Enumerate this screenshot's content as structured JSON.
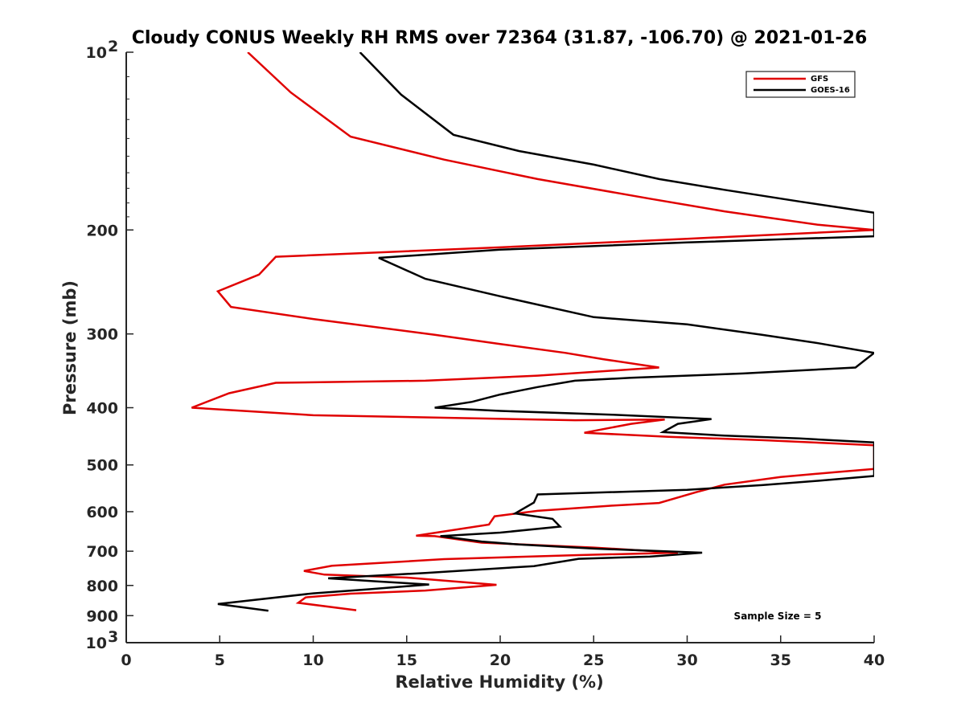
{
  "chart_data": {
    "type": "line",
    "title": "Cloudy CONUS Weekly RH RMS over 72364 (31.87, -106.70) @ 2021-01-26",
    "xlabel": "Relative Humidity (%)",
    "ylabel": "Pressure (mb)",
    "xlim": [
      0,
      40
    ],
    "ylim": [
      100,
      1000
    ],
    "y_scale": "log",
    "y_reversed": true,
    "grid": false,
    "legend_position": "top-right",
    "x_ticks": [
      "0",
      "5",
      "10",
      "15",
      "20",
      "25",
      "30",
      "35",
      "40"
    ],
    "y_ticks": [
      {
        "value": 100,
        "label": "10",
        "exponent": "2"
      },
      {
        "value": 200,
        "label": "200",
        "exponent": ""
      },
      {
        "value": 300,
        "label": "300",
        "exponent": ""
      },
      {
        "value": 400,
        "label": "400",
        "exponent": ""
      },
      {
        "value": 500,
        "label": "500",
        "exponent": ""
      },
      {
        "value": 600,
        "label": "600",
        "exponent": ""
      },
      {
        "value": 700,
        "label": "700",
        "exponent": ""
      },
      {
        "value": 800,
        "label": "800",
        "exponent": ""
      },
      {
        "value": 900,
        "label": "900",
        "exponent": ""
      },
      {
        "value": 1000,
        "label": "10",
        "exponent": "3"
      }
    ],
    "annotation": "Sample Size = 5",
    "series": [
      {
        "name": "GFS",
        "color": "#e00000",
        "points": [
          [
            6.5,
            100
          ],
          [
            8.8,
            117
          ],
          [
            12.0,
            139
          ],
          [
            17.0,
            152
          ],
          [
            22.0,
            164
          ],
          [
            28.0,
            177
          ],
          [
            32.0,
            186
          ],
          [
            37.0,
            196
          ],
          [
            40.0,
            200
          ],
          [
            30.0,
            207
          ],
          [
            20.0,
            214
          ],
          [
            8.0,
            222
          ],
          [
            7.1,
            238
          ],
          [
            4.9,
            254
          ],
          [
            5.6,
            270
          ],
          [
            10.0,
            283
          ],
          [
            16.5,
            301
          ],
          [
            20.0,
            312
          ],
          [
            23.5,
            323
          ],
          [
            25.5,
            331
          ],
          [
            28.5,
            342
          ],
          [
            22.0,
            353
          ],
          [
            16.0,
            360
          ],
          [
            8.0,
            363
          ],
          [
            5.5,
            378
          ],
          [
            3.5,
            400
          ],
          [
            10.0,
            412
          ],
          [
            17.0,
            416
          ],
          [
            24.0,
            420
          ],
          [
            28.8,
            419
          ],
          [
            27.0,
            426
          ],
          [
            24.5,
            441
          ],
          [
            29.0,
            448
          ],
          [
            34.0,
            454
          ],
          [
            40.0,
            463
          ],
          [
            40.0,
            508
          ],
          [
            38.0,
            514
          ],
          [
            35.0,
            524
          ],
          [
            32.0,
            540
          ],
          [
            30.5,
            556
          ],
          [
            28.5,
            580
          ],
          [
            26.0,
            586
          ],
          [
            22.0,
            598
          ],
          [
            19.7,
            611
          ],
          [
            19.4,
            631
          ],
          [
            15.5,
            659
          ],
          [
            16.5,
            660
          ],
          [
            19.0,
            677
          ],
          [
            25.0,
            690
          ],
          [
            29.5,
            704
          ],
          [
            24.0,
            711
          ],
          [
            17.0,
            722
          ],
          [
            11.0,
            741
          ],
          [
            9.5,
            756
          ],
          [
            10.6,
            767
          ],
          [
            15.0,
            776
          ],
          [
            17.0,
            785
          ],
          [
            19.8,
            798
          ],
          [
            16.0,
            816
          ],
          [
            12.0,
            826
          ],
          [
            9.6,
            838
          ],
          [
            9.2,
            856
          ],
          [
            12.3,
            881
          ]
        ]
      },
      {
        "name": "GOES-16",
        "color": "#000000",
        "points": [
          [
            12.5,
            100
          ],
          [
            14.7,
            118
          ],
          [
            17.5,
            138
          ],
          [
            21.0,
            147
          ],
          [
            25.0,
            155
          ],
          [
            28.5,
            164
          ],
          [
            32.0,
            171
          ],
          [
            36.0,
            179
          ],
          [
            40.0,
            187
          ],
          [
            40.0,
            205
          ],
          [
            30.0,
            210
          ],
          [
            20.0,
            216
          ],
          [
            13.5,
            223
          ],
          [
            16.0,
            242
          ],
          [
            20.0,
            259
          ],
          [
            25.0,
            281
          ],
          [
            30.0,
            289
          ],
          [
            34.0,
            301
          ],
          [
            37.0,
            311
          ],
          [
            40.0,
            323
          ],
          [
            39.0,
            342
          ],
          [
            33.0,
            350
          ],
          [
            27.0,
            356
          ],
          [
            24.0,
            360
          ],
          [
            22.0,
            369
          ],
          [
            20.0,
            380
          ],
          [
            18.5,
            391
          ],
          [
            16.5,
            400
          ],
          [
            20.0,
            405
          ],
          [
            26.0,
            411
          ],
          [
            31.3,
            418
          ],
          [
            29.5,
            426
          ],
          [
            28.7,
            440
          ],
          [
            32.0,
            446
          ],
          [
            36.0,
            451
          ],
          [
            40.0,
            458
          ],
          [
            40.0,
            522
          ],
          [
            37.0,
            532
          ],
          [
            34.0,
            541
          ],
          [
            30.0,
            551
          ],
          [
            22.0,
            561
          ],
          [
            21.8,
            579
          ],
          [
            20.8,
            604
          ],
          [
            22.8,
            617
          ],
          [
            23.2,
            636
          ],
          [
            20.0,
            651
          ],
          [
            16.8,
            660
          ],
          [
            19.0,
            674
          ],
          [
            21.0,
            682
          ],
          [
            25.0,
            693
          ],
          [
            30.8,
            704
          ],
          [
            28.0,
            715
          ],
          [
            24.2,
            721
          ],
          [
            21.8,
            742
          ],
          [
            16.0,
            762
          ],
          [
            10.8,
            778
          ],
          [
            13.5,
            788
          ],
          [
            16.2,
            797
          ],
          [
            13.0,
            812
          ],
          [
            10.0,
            825
          ],
          [
            4.9,
            860
          ],
          [
            7.6,
            883
          ]
        ]
      }
    ]
  }
}
